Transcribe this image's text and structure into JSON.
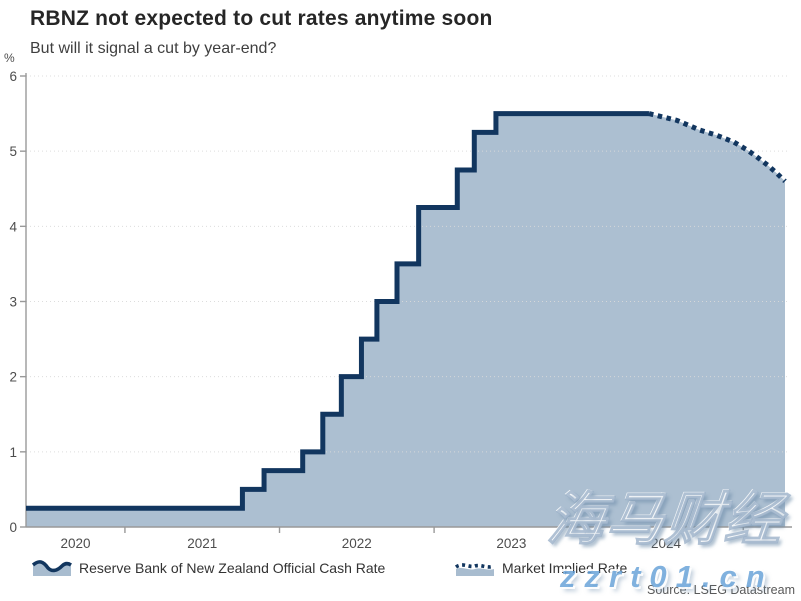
{
  "chart_data": {
    "type": "area",
    "title": "RBNZ not expected to cut rates anytime soon",
    "subtitle": "But will it signal a cut by year-end?",
    "unit": "%",
    "ylim": [
      0,
      6
    ],
    "y_ticks": [
      0,
      1,
      2,
      3,
      4,
      5,
      6
    ],
    "xlim": [
      2020.36,
      2025.27
    ],
    "x_tick_positions": [
      2021,
      2022,
      2023,
      2024,
      2025
    ],
    "x_labels": [
      {
        "pos": 2020.68,
        "label": "2020"
      },
      {
        "pos": 2021.5,
        "label": "2021"
      },
      {
        "pos": 2022.5,
        "label": "2022"
      },
      {
        "pos": 2023.5,
        "label": "2023"
      },
      {
        "pos": 2024.5,
        "label": "2024"
      }
    ],
    "grid": true,
    "legend_position": "bottom",
    "series": [
      {
        "name": "Reserve Bank of New Zealand Official Cash Rate",
        "type": "step",
        "color": "#12365f",
        "fill": "#a8bccf",
        "steps": [
          [
            2020.36,
            0.25
          ],
          [
            2021.76,
            0.5
          ],
          [
            2021.9,
            0.75
          ],
          [
            2022.15,
            1.0
          ],
          [
            2022.28,
            1.5
          ],
          [
            2022.4,
            2.0
          ],
          [
            2022.53,
            2.5
          ],
          [
            2022.63,
            3.0
          ],
          [
            2022.76,
            3.5
          ],
          [
            2022.9,
            4.25
          ],
          [
            2023.15,
            4.75
          ],
          [
            2023.26,
            5.25
          ],
          [
            2023.4,
            5.5
          ]
        ],
        "end_x": 2024.39
      },
      {
        "name": "Market Implied Rate",
        "type": "dotted-line",
        "color": "#12365f",
        "points": [
          [
            2024.39,
            5.5
          ],
          [
            2024.57,
            5.41
          ],
          [
            2024.72,
            5.28
          ],
          [
            2024.83,
            5.21
          ],
          [
            2024.94,
            5.12
          ],
          [
            2025.03,
            5.01
          ],
          [
            2025.09,
            4.92
          ],
          [
            2025.16,
            4.81
          ],
          [
            2025.22,
            4.7
          ],
          [
            2025.27,
            4.6
          ]
        ]
      }
    ],
    "colors": {
      "line": "#12365f",
      "fill": "#a8bccf",
      "grid": "#d9d9d9",
      "axis": "#999999",
      "tick_text": "#4d4d4d"
    }
  },
  "footer": {
    "source": "Source: LSEG Datastream"
  },
  "watermarks": {
    "primary": "海马财经",
    "secondary": "zzrt01.cn"
  }
}
